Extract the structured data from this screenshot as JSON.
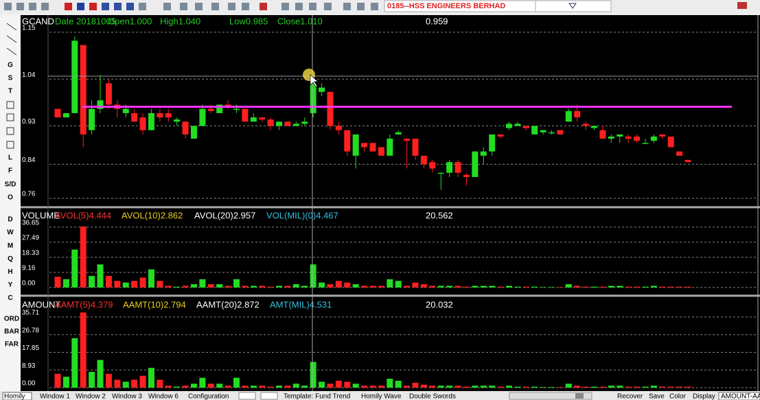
{
  "toolbar": {
    "stock": "0185--HSS ENGINEERS BERHAD"
  },
  "left_toolbar": {
    "tools": [
      "G",
      "S",
      "T",
      "L",
      "F",
      "S/D",
      "O"
    ],
    "periods": [
      "D",
      "W",
      "M",
      "Q",
      "H",
      "Y",
      "C"
    ],
    "modes": [
      "ORD",
      "BAR",
      "FAR"
    ],
    "badge": "D"
  },
  "price_panel": {
    "header": [
      {
        "text": "GCAND",
        "color": "#ffffff"
      },
      {
        "text": "Date 20181005",
        "color": "#22cc22"
      },
      {
        "text": "Open1.000",
        "color": "#22cc22"
      },
      {
        "text": "High1.040",
        "color": "#22cc22"
      },
      {
        "text": "Low0.985",
        "color": "#22cc22"
      },
      {
        "text": "Close1.010",
        "color": "#22cc22"
      }
    ],
    "cursor_value": "0.959",
    "ylim": [
      0.76,
      1.15
    ],
    "yticks": [
      1.15,
      1.04,
      0.93,
      0.84,
      0.76
    ],
    "level_line": 0.975,
    "level_color": "#ff33ff",
    "up_color": "#22dd22",
    "down_color": "#ff2020",
    "open": [
      0.97,
      0.95,
      0.96,
      1.12,
      0.92,
      0.97,
      1.03,
      0.98,
      0.96,
      0.96,
      0.95,
      0.92,
      0.96,
      0.96,
      0.94,
      0.94,
      0.9,
      0.93,
      0.97,
      0.96,
      0.98,
      0.97,
      0.97,
      0.94,
      0.95,
      0.945,
      0.93,
      0.94,
      0.93,
      0.935,
      0.96,
      1.01,
      1.01,
      0.93,
      0.92,
      0.86,
      0.89,
      0.89,
      0.88,
      0.86,
      0.91,
      0.9,
      0.9,
      0.86,
      0.845,
      0.82,
      0.82,
      0.845,
      0.815,
      0.81,
      0.86,
      0.87,
      0.91,
      0.925,
      0.93,
      0.93,
      0.91,
      0.915,
      0.915,
      0.92,
      0.94,
      0.965,
      0.935,
      0.925,
      0.92,
      0.9,
      0.905,
      0.905,
      0.905,
      0.89,
      0.895,
      0.91,
      0.905,
      0.87,
      0.85
    ],
    "high": [
      0.97,
      0.96,
      1.14,
      1.12,
      0.99,
      1.05,
      1.04,
      0.99,
      0.98,
      0.97,
      0.96,
      0.97,
      0.97,
      0.97,
      0.95,
      0.94,
      0.93,
      0.98,
      0.98,
      0.98,
      0.99,
      0.98,
      0.97,
      0.96,
      0.95,
      0.95,
      0.94,
      0.94,
      0.94,
      0.95,
      1.04,
      1.03,
      1.01,
      0.94,
      0.92,
      0.91,
      0.89,
      0.89,
      0.88,
      0.91,
      0.92,
      0.9,
      0.9,
      0.86,
      0.85,
      0.82,
      0.85,
      0.85,
      0.82,
      0.87,
      0.88,
      0.91,
      0.91,
      0.94,
      0.94,
      0.93,
      0.93,
      0.92,
      0.92,
      0.92,
      0.97,
      0.98,
      0.94,
      0.93,
      0.93,
      0.91,
      0.91,
      0.91,
      0.91,
      0.9,
      0.91,
      0.91,
      0.905,
      0.87,
      0.85
    ],
    "low": [
      0.95,
      0.95,
      0.96,
      0.88,
      0.91,
      0.96,
      0.97,
      0.95,
      0.95,
      0.94,
      0.91,
      0.92,
      0.94,
      0.94,
      0.93,
      0.9,
      0.9,
      0.93,
      0.96,
      0.96,
      0.97,
      0.96,
      0.94,
      0.94,
      0.94,
      0.92,
      0.92,
      0.93,
      0.93,
      0.93,
      0.95,
      1.0,
      0.92,
      0.91,
      0.86,
      0.83,
      0.87,
      0.87,
      0.86,
      0.86,
      0.91,
      0.83,
      0.85,
      0.83,
      0.82,
      0.78,
      0.81,
      0.81,
      0.79,
      0.81,
      0.84,
      0.86,
      0.9,
      0.92,
      0.93,
      0.92,
      0.91,
      0.91,
      0.91,
      0.91,
      0.94,
      0.94,
      0.92,
      0.92,
      0.9,
      0.89,
      0.89,
      0.89,
      0.89,
      0.89,
      0.89,
      0.9,
      0.88,
      0.86,
      0.845
    ],
    "close": [
      0.95,
      0.96,
      1.13,
      0.91,
      0.97,
      0.99,
      0.98,
      0.97,
      0.97,
      0.94,
      0.92,
      0.96,
      0.95,
      0.95,
      0.945,
      0.91,
      0.93,
      0.97,
      0.965,
      0.98,
      0.975,
      0.97,
      0.94,
      0.95,
      0.945,
      0.93,
      0.94,
      0.93,
      0.935,
      0.94,
      1.03,
      1.02,
      0.93,
      0.92,
      0.87,
      0.91,
      0.88,
      0.87,
      0.86,
      0.9,
      0.915,
      0.895,
      0.86,
      0.84,
      0.83,
      0.82,
      0.845,
      0.82,
      0.81,
      0.87,
      0.87,
      0.91,
      0.905,
      0.935,
      0.935,
      0.925,
      0.93,
      0.92,
      0.915,
      0.91,
      0.965,
      0.95,
      0.93,
      0.93,
      0.9,
      0.905,
      0.91,
      0.9,
      0.895,
      0.89,
      0.905,
      0.905,
      0.88,
      0.86,
      0.845
    ]
  },
  "volume_panel": {
    "header": [
      {
        "text": "VOLUME",
        "color": "#ffffff"
      },
      {
        "text": "AVOL(5)4.444",
        "color": "#ff3030"
      },
      {
        "text": "AVOL(10)2.862",
        "color": "#e8d020"
      },
      {
        "text": "AVOL(20)2.957",
        "color": "#ffffff"
      },
      {
        "text": "VOL(MIL)(0)4.467",
        "color": "#30c0e0"
      }
    ],
    "cursor_value": "20.562",
    "ylim": [
      0,
      36.65
    ],
    "yticks": [
      36.65,
      27.49,
      18.33,
      9.16,
      {
        "value": 0,
        "label": "0.00"
      }
    ],
    "values": [
      6.5,
      5,
      23,
      37,
      7,
      14,
      7,
      4,
      3,
      4,
      6,
      11,
      4,
      1,
      0.5,
      1,
      2,
      5,
      2,
      2,
      1,
      5,
      1,
      1,
      1,
      0.5,
      1,
      1,
      2,
      1,
      14,
      3,
      2,
      4,
      3,
      2,
      1,
      1,
      1,
      5,
      4,
      1,
      3,
      2,
      1,
      1,
      1,
      1,
      0.5,
      1,
      1,
      1,
      0.5,
      1,
      0.5,
      0.5,
      0.5,
      0.3,
      0.3,
      0.3,
      2,
      1,
      0.5,
      0.5,
      0.5,
      1,
      1,
      0.5,
      0.5,
      0.5,
      1,
      0.5,
      0.5,
      0.5,
      0.5
    ]
  },
  "amount_panel": {
    "header": [
      {
        "text": "AMOUNT",
        "color": "#ffffff"
      },
      {
        "text": "AAMT(5)4.379",
        "color": "#ff3030"
      },
      {
        "text": "AAMT(10)2.794",
        "color": "#e8d020"
      },
      {
        "text": "AAMT(20)2.872",
        "color": "#ffffff"
      },
      {
        "text": "AMT(MIL)4.531",
        "color": "#30c0e0"
      }
    ],
    "cursor_value": "20.032",
    "ylim": [
      0,
      35.71
    ],
    "yticks": [
      35.71,
      26.78,
      17.85,
      8.93,
      {
        "value": 0,
        "label": "0.00"
      }
    ],
    "values": [
      7,
      5.5,
      25,
      38,
      8,
      14,
      7,
      4,
      3,
      4,
      6,
      10,
      4,
      1,
      0.5,
      1,
      2,
      5,
      2,
      2,
      1,
      5,
      1,
      1,
      1,
      0.5,
      1,
      1,
      2,
      1,
      13,
      3,
      2,
      3.5,
      3,
      2,
      1,
      1,
      1,
      4.5,
      3.5,
      1,
      2.5,
      1.5,
      1,
      1,
      1,
      1,
      0.5,
      1,
      1,
      1,
      0.5,
      1,
      0.5,
      0.5,
      0.5,
      0.3,
      0.3,
      0.3,
      2,
      1,
      0.5,
      0.5,
      0.5,
      1,
      1,
      0.5,
      0.5,
      0.5,
      1,
      0.5,
      0.5,
      0.5,
      0.5
    ]
  },
  "bottom_bar": {
    "tabs": [
      "Homily",
      "Window 1",
      "Window 2",
      "Window 3",
      "Window 6",
      "Configuration"
    ],
    "templates": [
      "Template: Fund Trend",
      "Homily Wave",
      "Double Swords"
    ],
    "buttons": [
      "Recover",
      "Save",
      "Color",
      "Display",
      "AMOUNT-AA"
    ]
  }
}
